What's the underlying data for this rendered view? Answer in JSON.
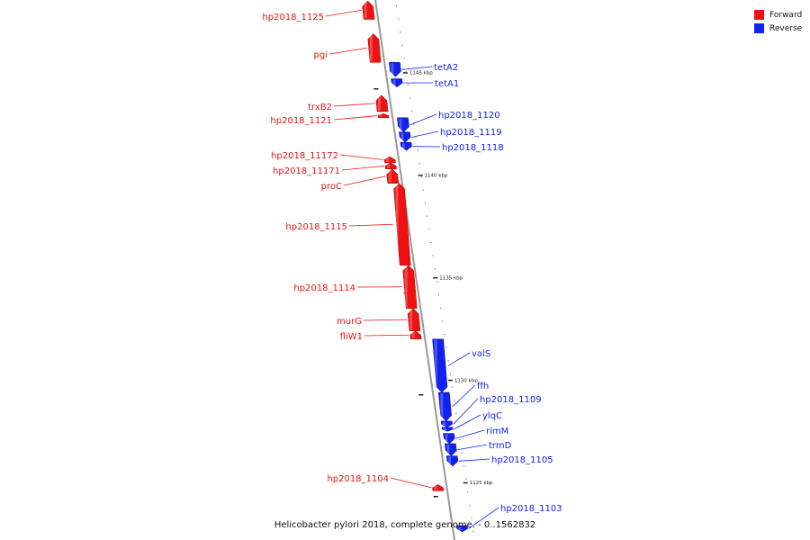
{
  "colors": {
    "forward": "#ee1111",
    "reverse": "#1122ee",
    "axis": "#999999"
  },
  "legend": [
    {
      "label": "Forward",
      "color": "#ee1111"
    },
    {
      "label": "Reverse",
      "color": "#1122ee"
    }
  ],
  "caption": "Helicobacter pylori 2018, complete genome. - 0..1562832",
  "scale": {
    "kbp_top": 1148.5,
    "kbp_bottom": 1122.2,
    "ticks": [
      "1145 kbp",
      "1140 kbp",
      "1135 kbp",
      "1130 kbp",
      "1125 kbp"
    ]
  },
  "genes": [
    {
      "name": "hp2018_1125",
      "strand": "forward",
      "start_kbp": 1148.5,
      "end_kbp": 1147.6
    },
    {
      "name": "pgi",
      "strand": "forward",
      "start_kbp": 1146.9,
      "end_kbp": 1145.5
    },
    {
      "name": "tetA2",
      "strand": "reverse",
      "start_kbp": 1145.5,
      "end_kbp": 1144.8
    },
    {
      "name": "tetA1",
      "strand": "reverse",
      "start_kbp": 1144.7,
      "end_kbp": 1144.3
    },
    {
      "name": "trxB2",
      "strand": "forward",
      "start_kbp": 1143.9,
      "end_kbp": 1143.1
    },
    {
      "name": "hp2018_1121",
      "strand": "forward",
      "start_kbp": 1143.0,
      "end_kbp": 1142.8
    },
    {
      "name": "hp2018_1120",
      "strand": "reverse",
      "start_kbp": 1142.8,
      "end_kbp": 1142.1
    },
    {
      "name": "hp2018_1119",
      "strand": "reverse",
      "start_kbp": 1142.1,
      "end_kbp": 1141.6
    },
    {
      "name": "hp2018_1118",
      "strand": "reverse",
      "start_kbp": 1141.6,
      "end_kbp": 1141.2
    },
    {
      "name": "hp2018_11172",
      "strand": "forward",
      "start_kbp": 1140.9,
      "end_kbp": 1140.6
    },
    {
      "name": "hp2018_11171",
      "strand": "forward",
      "start_kbp": 1140.6,
      "end_kbp": 1140.3
    },
    {
      "name": "proC",
      "strand": "forward",
      "start_kbp": 1140.3,
      "end_kbp": 1139.6
    },
    {
      "name": "hp2018_1115",
      "strand": "forward",
      "start_kbp": 1139.6,
      "end_kbp": 1135.6
    },
    {
      "name": "hp2018_1114",
      "strand": "forward",
      "start_kbp": 1135.6,
      "end_kbp": 1133.5
    },
    {
      "name": "murG",
      "strand": "forward",
      "start_kbp": 1133.5,
      "end_kbp": 1132.4
    },
    {
      "name": "fliW1",
      "strand": "forward",
      "start_kbp": 1132.4,
      "end_kbp": 1132.0
    },
    {
      "name": "valS",
      "strand": "reverse",
      "start_kbp": 1132.0,
      "end_kbp": 1129.4
    },
    {
      "name": "ffh",
      "strand": "reverse",
      "start_kbp": 1129.4,
      "end_kbp": 1128.0
    },
    {
      "name": "hp2018_1109",
      "strand": "reverse",
      "start_kbp": 1128.0,
      "end_kbp": 1127.7
    },
    {
      "name": "ylqC",
      "strand": "reverse",
      "start_kbp": 1127.7,
      "end_kbp": 1127.5
    },
    {
      "name": "rimM",
      "strand": "reverse",
      "start_kbp": 1127.4,
      "end_kbp": 1126.9
    },
    {
      "name": "trmD",
      "strand": "reverse",
      "start_kbp": 1126.9,
      "end_kbp": 1126.3
    },
    {
      "name": "hp2018_1105",
      "strand": "reverse",
      "start_kbp": 1126.3,
      "end_kbp": 1125.8
    },
    {
      "name": "hp2018_1104",
      "strand": "forward",
      "start_kbp": 1124.9,
      "end_kbp": 1124.6
    },
    {
      "name": "hp2018_1103",
      "strand": "reverse",
      "start_kbp": 1122.9,
      "end_kbp": 1122.6
    }
  ]
}
